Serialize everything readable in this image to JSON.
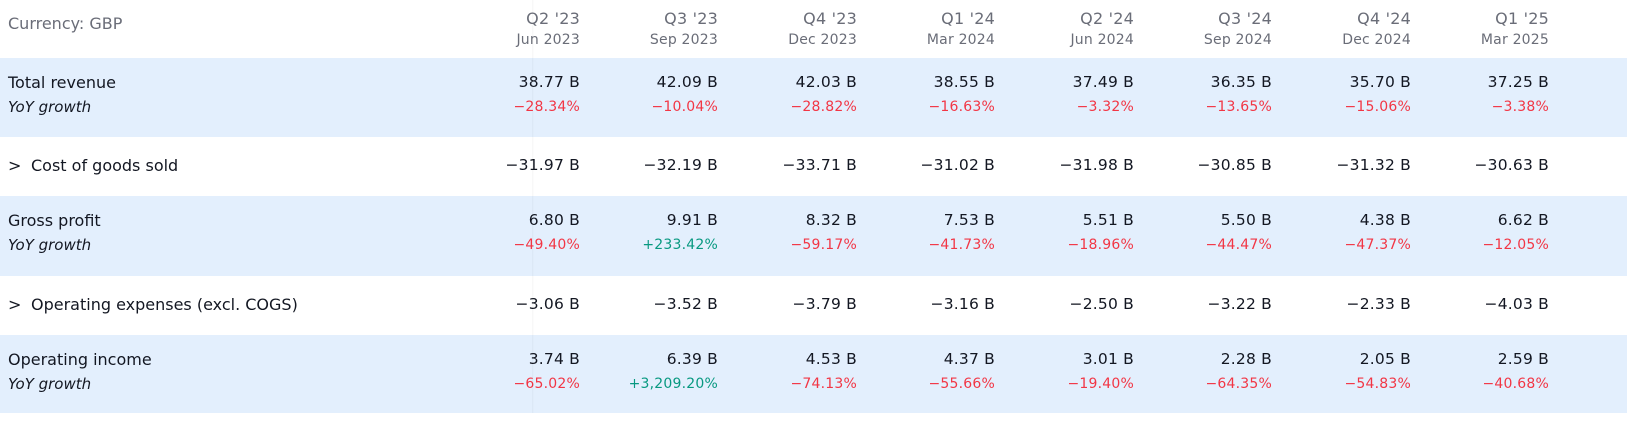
{
  "currency_label": "Currency: GBP",
  "colors": {
    "negative": "#f23645",
    "positive": "#089981",
    "highlight": "#e3effd"
  },
  "periods": [
    {
      "quarter": "Q2 '23",
      "date": "Jun 2023"
    },
    {
      "quarter": "Q3 '23",
      "date": "Sep 2023"
    },
    {
      "quarter": "Q4 '23",
      "date": "Dec 2023"
    },
    {
      "quarter": "Q1 '24",
      "date": "Mar 2024"
    },
    {
      "quarter": "Q2 '24",
      "date": "Jun 2024"
    },
    {
      "quarter": "Q3 '24",
      "date": "Sep 2024"
    },
    {
      "quarter": "Q4 '24",
      "date": "Dec 2024"
    },
    {
      "quarter": "Q1 '25",
      "date": "Mar 2025"
    }
  ],
  "rows": [
    {
      "label": "Total revenue",
      "sub_label": "YoY growth",
      "expandable": false,
      "highlight": true,
      "values": [
        "38.77 B",
        "42.09 B",
        "42.03 B",
        "38.55 B",
        "37.49 B",
        "36.35 B",
        "35.70 B",
        "37.25 B"
      ],
      "growth": [
        "−28.34%",
        "−10.04%",
        "−28.82%",
        "−16.63%",
        "−3.32%",
        "−13.65%",
        "−15.06%",
        "−3.38%"
      ]
    },
    {
      "label": "Cost of goods sold",
      "expandable": true,
      "highlight": false,
      "values": [
        "−31.97 B",
        "−32.19 B",
        "−33.71 B",
        "−31.02 B",
        "−31.98 B",
        "−30.85 B",
        "−31.32 B",
        "−30.63 B"
      ]
    },
    {
      "label": "Gross profit",
      "sub_label": "YoY growth",
      "expandable": false,
      "highlight": true,
      "values": [
        "6.80 B",
        "9.91 B",
        "8.32 B",
        "7.53 B",
        "5.51 B",
        "5.50 B",
        "4.38 B",
        "6.62 B"
      ],
      "growth": [
        "−49.40%",
        "+233.42%",
        "−59.17%",
        "−41.73%",
        "−18.96%",
        "−44.47%",
        "−47.37%",
        "−12.05%"
      ]
    },
    {
      "label": "Operating expenses (excl. COGS)",
      "expandable": true,
      "highlight": false,
      "values": [
        "−3.06 B",
        "−3.52 B",
        "−3.79 B",
        "−3.16 B",
        "−2.50 B",
        "−3.22 B",
        "−2.33 B",
        "−4.03 B"
      ]
    },
    {
      "label": "Operating income",
      "sub_label": "YoY growth",
      "expandable": false,
      "highlight": true,
      "values": [
        "3.74 B",
        "6.39 B",
        "4.53 B",
        "4.37 B",
        "3.01 B",
        "2.28 B",
        "2.05 B",
        "2.59 B"
      ],
      "growth": [
        "−65.02%",
        "+3,209.20%",
        "−74.13%",
        "−55.66%",
        "−19.40%",
        "−64.35%",
        "−54.83%",
        "−40.68%"
      ]
    }
  ],
  "expand_glyph": ">"
}
